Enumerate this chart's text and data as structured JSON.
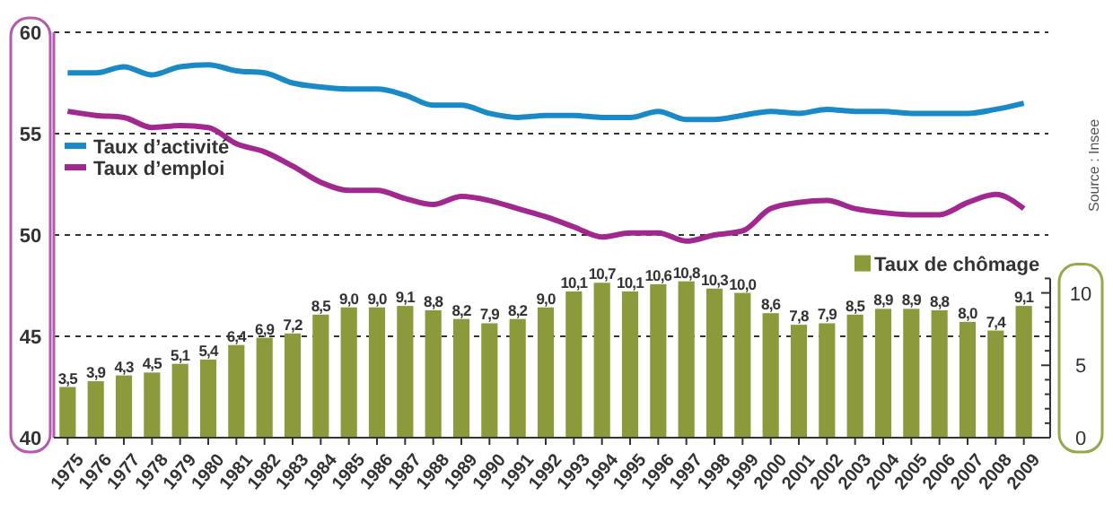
{
  "chart_data": {
    "type": "line",
    "categories": [
      "1975",
      "1976",
      "1977",
      "1978",
      "1979",
      "1980",
      "1981",
      "1982",
      "1983",
      "1984",
      "1985",
      "1986",
      "1987",
      "1988",
      "1989",
      "1990",
      "1991",
      "1992",
      "1993",
      "1994",
      "1995",
      "1996",
      "1997",
      "1998",
      "1999",
      "2000",
      "2001",
      "2002",
      "2003",
      "2004",
      "2005",
      "2006",
      "2007",
      "2008",
      "2009"
    ],
    "series": [
      {
        "name": "Taux de chômage",
        "type": "bar",
        "axis": "y2",
        "color": "#8c9a3c",
        "values": [
          3.5,
          3.9,
          4.3,
          4.5,
          5.1,
          5.4,
          6.4,
          6.9,
          7.2,
          8.5,
          9.0,
          9.0,
          9.1,
          8.8,
          8.2,
          7.9,
          8.2,
          9.0,
          10.1,
          10.7,
          10.1,
          10.6,
          10.8,
          10.3,
          10.0,
          8.6,
          7.8,
          7.9,
          8.5,
          8.9,
          8.9,
          8.8,
          8.0,
          7.4,
          9.1
        ],
        "value_labels": [
          "3,5",
          "3,9",
          "4,3",
          "4,5",
          "5,1",
          "5,4",
          "6,4",
          "6,9",
          "7,2",
          "8,5",
          "9,0",
          "9,0",
          "9,1",
          "8,8",
          "8,2",
          "7,9",
          "8,2",
          "9,0",
          "10,1",
          "10,7",
          "10,1",
          "10,6",
          "10,8",
          "10,3",
          "10,0",
          "8,6",
          "7,8",
          "7,9",
          "8,5",
          "8,9",
          "8,9",
          "8,8",
          "8,0",
          "7,4",
          "9,1"
        ]
      },
      {
        "name": "Taux d’activité",
        "color": "#1a8ac6",
        "values": [
          58.0,
          58.0,
          58.3,
          57.9,
          58.3,
          58.4,
          58.1,
          58.0,
          57.5,
          57.3,
          57.2,
          57.2,
          56.9,
          56.4,
          56.4,
          56.0,
          55.8,
          55.9,
          55.9,
          55.8,
          55.8,
          56.1,
          55.7,
          55.7,
          55.9,
          56.1,
          56.0,
          56.2,
          56.1,
          56.1,
          56.0,
          56.0,
          56.0,
          56.2,
          56.5
        ]
      },
      {
        "name": "Taux d’emploi",
        "color": "#a0288f",
        "values": [
          56.1,
          55.9,
          55.8,
          55.3,
          55.4,
          55.3,
          54.5,
          54.1,
          53.4,
          52.6,
          52.2,
          52.2,
          51.8,
          51.5,
          51.9,
          51.7,
          51.3,
          50.9,
          50.4,
          49.9,
          50.1,
          50.1,
          49.7,
          50.0,
          50.2,
          51.3,
          51.6,
          51.7,
          51.3,
          51.1,
          51.0,
          51.0,
          51.6,
          52.0,
          51.3
        ]
      }
    ],
    "ylim": [
      40,
      60
    ],
    "yticks": [
      40,
      45,
      50,
      55,
      60
    ],
    "y2lim": [
      0,
      28
    ],
    "y2ticks": [
      0,
      {
        "value": 1,
        "label": null
      },
      {
        "value": 2,
        "label": null
      },
      {
        "value": 3,
        "label": null
      },
      {
        "value": 4,
        "label": null
      },
      5,
      {
        "value": 6,
        "label": null
      },
      {
        "value": 7,
        "label": null
      },
      {
        "value": 8,
        "label": null
      },
      {
        "value": 9,
        "label": null
      },
      10,
      {
        "value": 11,
        "label": null
      }
    ],
    "grid": "y",
    "legend": "left",
    "line_style": "solid",
    "marker": "none",
    "annotations": [
      "Source : Insee"
    ]
  }
}
